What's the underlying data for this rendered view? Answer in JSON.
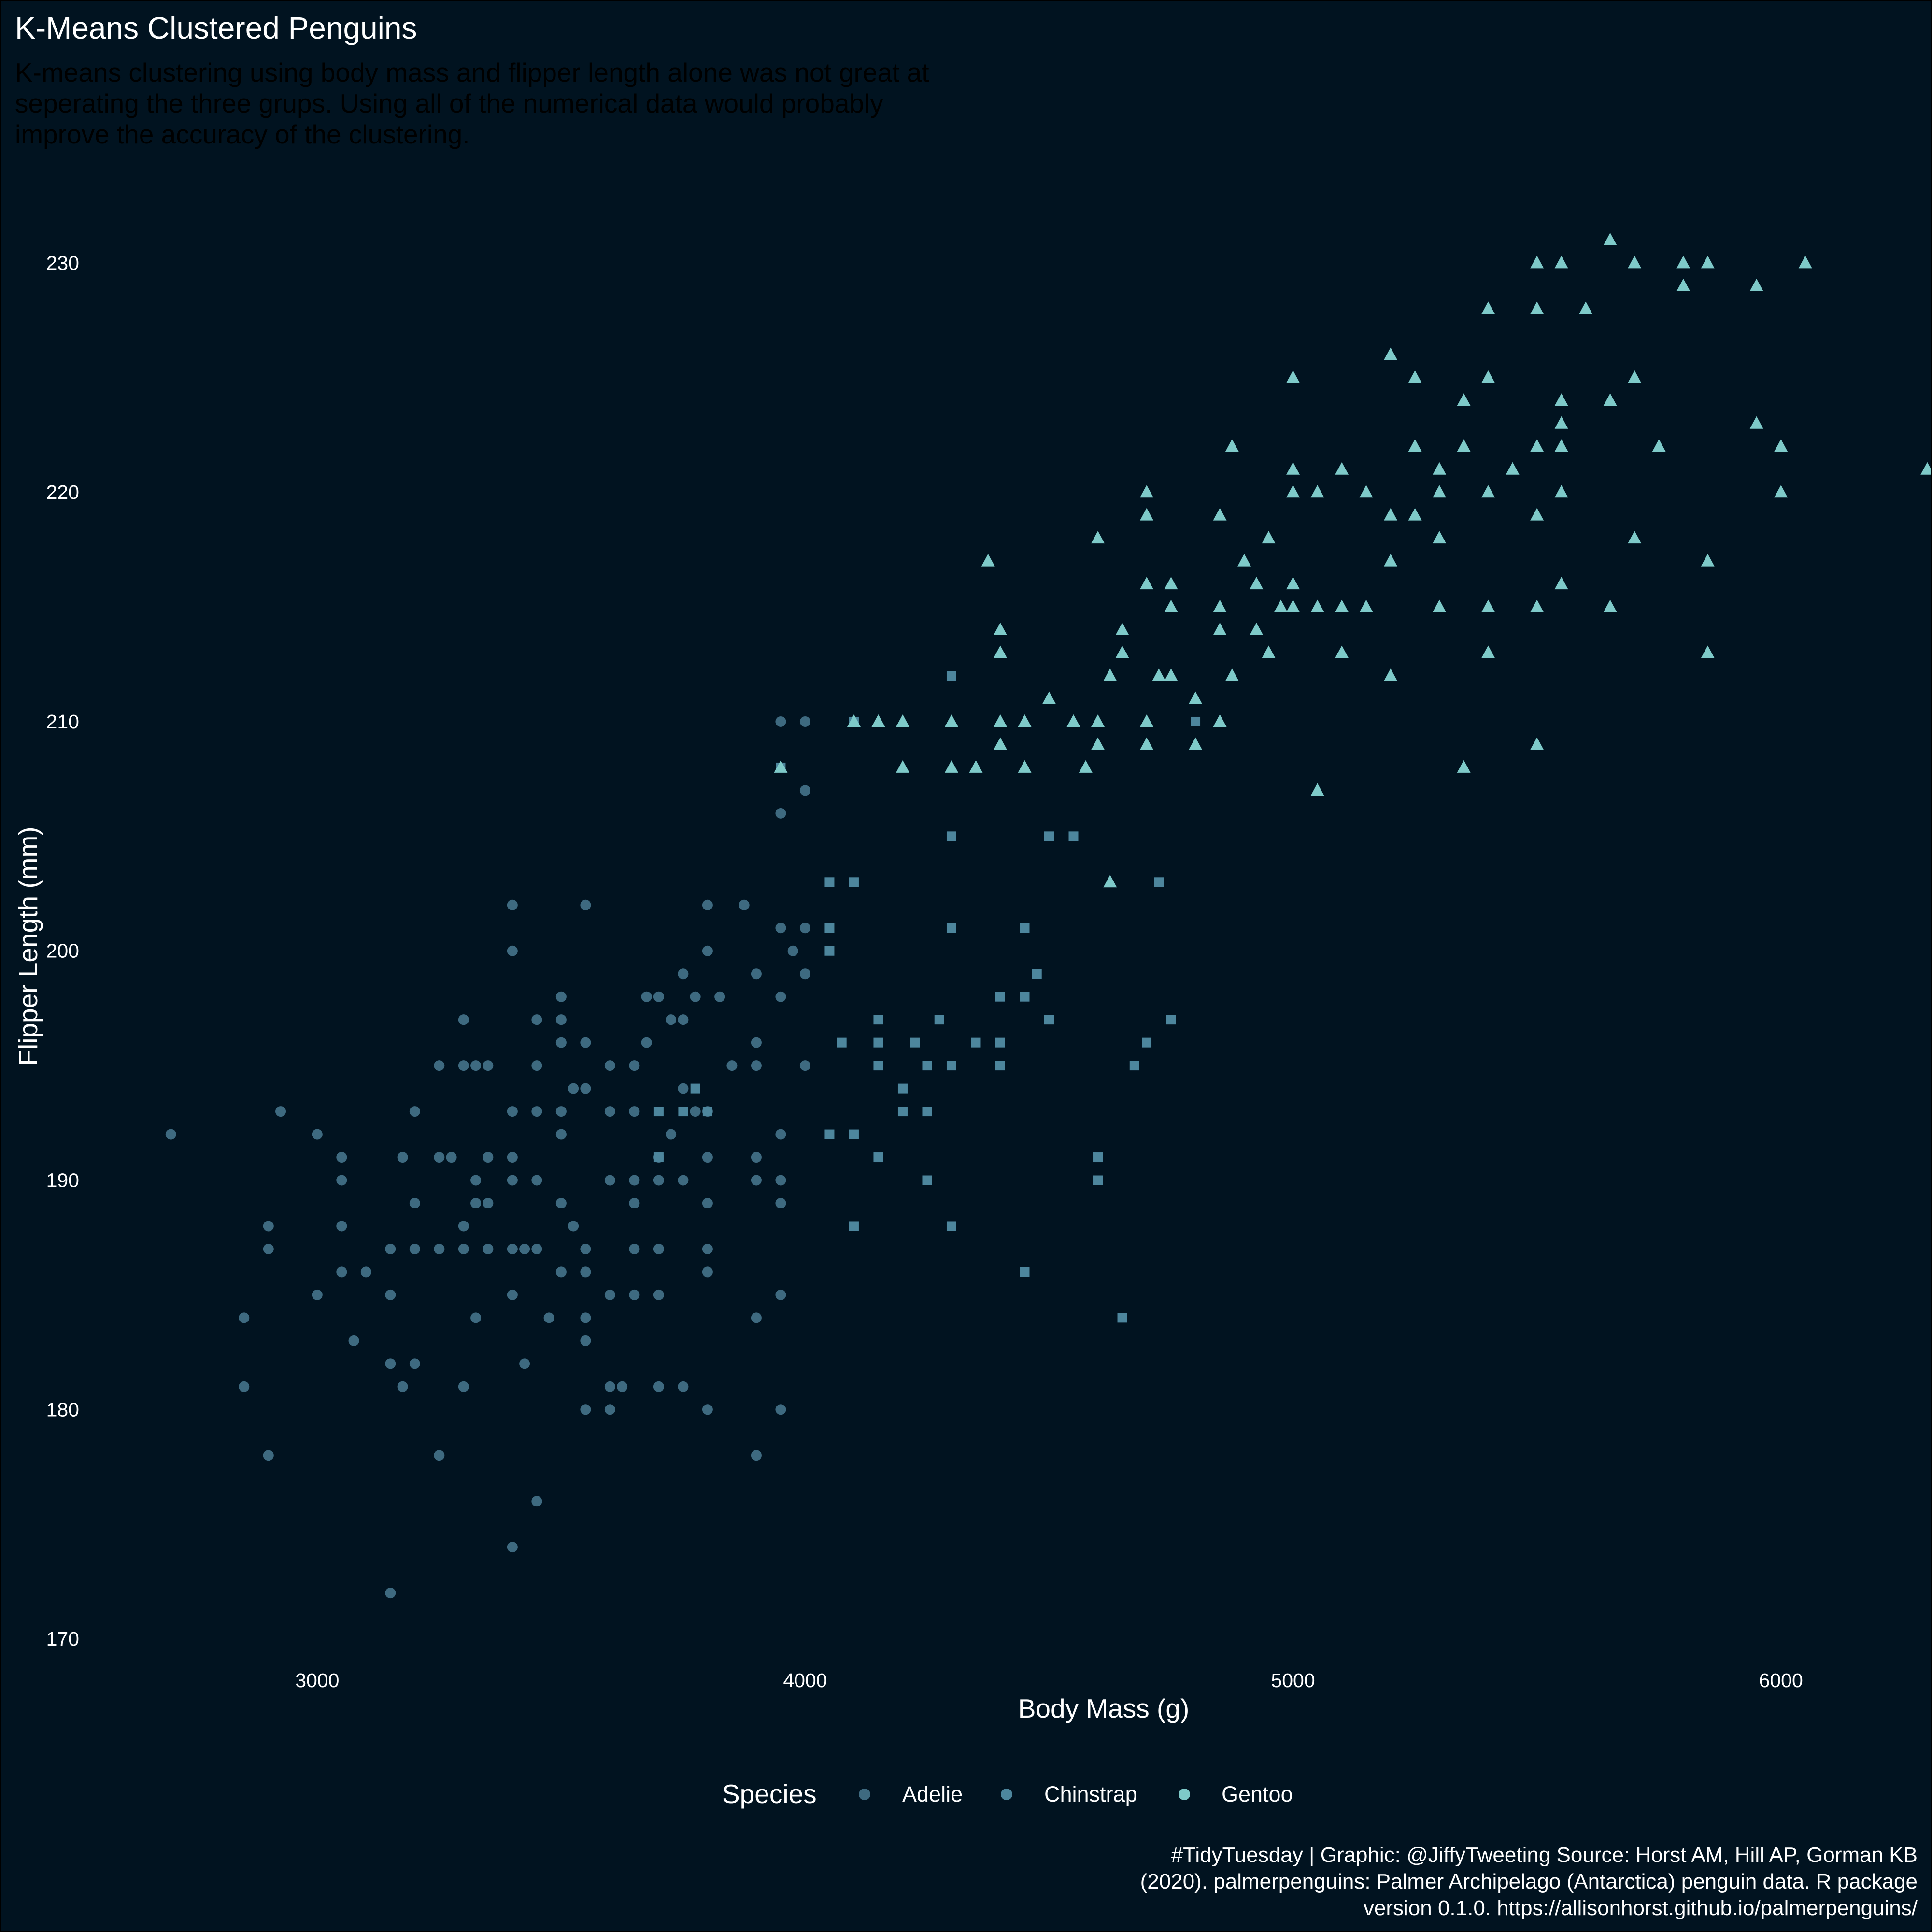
{
  "chart_data": {
    "type": "scatter",
    "title": "K-Means Clustered Penguins",
    "subtitle": [
      "K-means clustering using body mass and flipper length alone was not great at",
      "seperating the three grups. Using all of the numerical data would probably",
      "improve the accuracy of the clustering."
    ],
    "xlabel": "Body Mass (g)",
    "ylabel": "Flipper Length (mm)",
    "xlim": [
      2625,
      6375
    ],
    "ylim": [
      168,
      233
    ],
    "xticks": [
      3000,
      4000,
      5000,
      6000
    ],
    "yticks": [
      170,
      180,
      190,
      200,
      210,
      220,
      230
    ],
    "grid": false,
    "legend": {
      "title": "Species",
      "position": "bottom",
      "entries": [
        "Adelie",
        "Chinstrap",
        "Gentoo"
      ]
    },
    "cluster_colors": [
      "#3e6a80",
      "#4d869d",
      "#7ecac9"
    ],
    "cluster_shapes": [
      "circle",
      "square",
      "triangle"
    ],
    "caption": [
      "#TidyTuesday | Graphic: @JiffyTweeting Source: Horst AM, Hill AP, Gorman KB",
      "(2020). palmerpenguins: Palmer Archipelago (Antarctica) penguin data. R package",
      "version 0.1.0. https://allisonhorst.github.io/palmerpenguins/"
    ],
    "series": [
      {
        "name": "Adelie",
        "points": [
          [
            2700,
            192
          ],
          [
            2850,
            184
          ],
          [
            2850,
            181
          ],
          [
            2900,
            188
          ],
          [
            2900,
            187
          ],
          [
            2900,
            178
          ],
          [
            2925,
            193
          ],
          [
            3000,
            185
          ],
          [
            3000,
            192
          ],
          [
            3050,
            191
          ],
          [
            3050,
            190
          ],
          [
            3050,
            188
          ],
          [
            3050,
            186
          ],
          [
            3075,
            183
          ],
          [
            3100,
            186
          ],
          [
            3150,
            187
          ],
          [
            3150,
            185
          ],
          [
            3150,
            182
          ],
          [
            3150,
            172
          ],
          [
            3175,
            191
          ],
          [
            3175,
            181
          ],
          [
            3200,
            193
          ],
          [
            3200,
            189
          ],
          [
            3200,
            187
          ],
          [
            3200,
            182
          ],
          [
            3250,
            195
          ],
          [
            3250,
            191
          ],
          [
            3250,
            187
          ],
          [
            3250,
            178
          ],
          [
            3275,
            191
          ],
          [
            3300,
            197
          ],
          [
            3300,
            195
          ],
          [
            3300,
            188
          ],
          [
            3300,
            187
          ],
          [
            3300,
            181
          ],
          [
            3325,
            190
          ],
          [
            3325,
            189
          ],
          [
            3325,
            184
          ],
          [
            3325,
            195
          ],
          [
            3350,
            195
          ],
          [
            3350,
            191
          ],
          [
            3350,
            189
          ],
          [
            3350,
            187
          ],
          [
            3400,
            202
          ],
          [
            3400,
            200
          ],
          [
            3400,
            193
          ],
          [
            3400,
            191
          ],
          [
            3400,
            190
          ],
          [
            3400,
            187
          ],
          [
            3400,
            185
          ],
          [
            3400,
            174
          ],
          [
            3425,
            187
          ],
          [
            3425,
            182
          ],
          [
            3450,
            197
          ],
          [
            3450,
            195
          ],
          [
            3450,
            193
          ],
          [
            3450,
            190
          ],
          [
            3450,
            187
          ],
          [
            3450,
            176
          ],
          [
            3475,
            184
          ],
          [
            3500,
            198
          ],
          [
            3500,
            197
          ],
          [
            3500,
            196
          ],
          [
            3500,
            193
          ],
          [
            3500,
            192
          ],
          [
            3500,
            189
          ],
          [
            3500,
            186
          ],
          [
            3525,
            188
          ],
          [
            3525,
            194
          ],
          [
            3550,
            202
          ],
          [
            3550,
            196
          ],
          [
            3550,
            194
          ],
          [
            3550,
            187
          ],
          [
            3550,
            186
          ],
          [
            3550,
            184
          ],
          [
            3550,
            183
          ],
          [
            3550,
            180
          ],
          [
            3600,
            195
          ],
          [
            3600,
            193
          ],
          [
            3600,
            190
          ],
          [
            3600,
            185
          ],
          [
            3600,
            181
          ],
          [
            3600,
            180
          ],
          [
            3625,
            181
          ],
          [
            3650,
            195
          ],
          [
            3650,
            193
          ],
          [
            3650,
            190
          ],
          [
            3650,
            189
          ],
          [
            3650,
            187
          ],
          [
            3650,
            185
          ],
          [
            3675,
            196
          ],
          [
            3675,
            198
          ],
          [
            3700,
            198
          ],
          [
            3700,
            191
          ],
          [
            3700,
            190
          ],
          [
            3700,
            187
          ],
          [
            3700,
            185
          ],
          [
            3700,
            181
          ],
          [
            3725,
            197
          ],
          [
            3725,
            192
          ],
          [
            3750,
            199
          ],
          [
            3750,
            197
          ],
          [
            3750,
            194
          ],
          [
            3750,
            190
          ],
          [
            3750,
            181
          ],
          [
            3775,
            198
          ],
          [
            3775,
            193
          ],
          [
            3800,
            202
          ],
          [
            3800,
            200
          ],
          [
            3800,
            193
          ],
          [
            3800,
            191
          ],
          [
            3800,
            189
          ],
          [
            3800,
            187
          ],
          [
            3800,
            186
          ],
          [
            3800,
            180
          ],
          [
            3825,
            198
          ],
          [
            3850,
            195
          ],
          [
            3875,
            202
          ],
          [
            3900,
            199
          ],
          [
            3900,
            196
          ],
          [
            3900,
            195
          ],
          [
            3900,
            191
          ],
          [
            3900,
            190
          ],
          [
            3900,
            184
          ],
          [
            3900,
            178
          ],
          [
            3950,
            210
          ],
          [
            3950,
            206
          ],
          [
            3950,
            201
          ],
          [
            3950,
            198
          ],
          [
            3950,
            192
          ],
          [
            3950,
            190
          ],
          [
            3950,
            189
          ],
          [
            3950,
            185
          ],
          [
            3950,
            180
          ],
          [
            3975,
            200
          ],
          [
            4000,
            210
          ],
          [
            4000,
            201
          ],
          [
            4000,
            199
          ],
          [
            4000,
            195
          ],
          [
            4000,
            207
          ]
        ]
      },
      {
        "name": "Chinstrap",
        "points": [
          [
            3700,
            193
          ],
          [
            3700,
            191
          ],
          [
            3750,
            193
          ],
          [
            3775,
            194
          ],
          [
            3800,
            193
          ],
          [
            3950,
            208
          ],
          [
            4050,
            201
          ],
          [
            4050,
            200
          ],
          [
            4050,
            203
          ],
          [
            4050,
            192
          ],
          [
            4075,
            196
          ],
          [
            4100,
            192
          ],
          [
            4100,
            188
          ],
          [
            4100,
            203
          ],
          [
            4100,
            210
          ],
          [
            4150,
            197
          ],
          [
            4150,
            196
          ],
          [
            4150,
            195
          ],
          [
            4150,
            191
          ],
          [
            4200,
            194
          ],
          [
            4200,
            193
          ],
          [
            4225,
            196
          ],
          [
            4250,
            195
          ],
          [
            4250,
            193
          ],
          [
            4250,
            190
          ],
          [
            4275,
            197
          ],
          [
            4300,
            212
          ],
          [
            4300,
            205
          ],
          [
            4300,
            201
          ],
          [
            4300,
            195
          ],
          [
            4300,
            188
          ],
          [
            4350,
            196
          ],
          [
            4400,
            198
          ],
          [
            4400,
            196
          ],
          [
            4400,
            195
          ],
          [
            4450,
            201
          ],
          [
            4450,
            198
          ],
          [
            4450,
            186
          ],
          [
            4475,
            199
          ],
          [
            4500,
            205
          ],
          [
            4500,
            197
          ],
          [
            4550,
            205
          ],
          [
            4600,
            191
          ],
          [
            4600,
            190
          ],
          [
            4650,
            184
          ],
          [
            4675,
            195
          ],
          [
            4700,
            196
          ],
          [
            4725,
            203
          ],
          [
            4750,
            197
          ],
          [
            4800,
            210
          ]
        ]
      },
      {
        "name": "Gentoo",
        "points": [
          [
            3950,
            208
          ],
          [
            4100,
            210
          ],
          [
            4150,
            210
          ],
          [
            4200,
            210
          ],
          [
            4200,
            208
          ],
          [
            4300,
            210
          ],
          [
            4300,
            208
          ],
          [
            4350,
            208
          ],
          [
            4375,
            217
          ],
          [
            4400,
            214
          ],
          [
            4400,
            213
          ],
          [
            4400,
            210
          ],
          [
            4400,
            209
          ],
          [
            4450,
            210
          ],
          [
            4450,
            208
          ],
          [
            4500,
            211
          ],
          [
            4550,
            210
          ],
          [
            4575,
            208
          ],
          [
            4600,
            218
          ],
          [
            4600,
            210
          ],
          [
            4600,
            209
          ],
          [
            4625,
            212
          ],
          [
            4625,
            203
          ],
          [
            4650,
            214
          ],
          [
            4650,
            213
          ],
          [
            4700,
            220
          ],
          [
            4700,
            219
          ],
          [
            4700,
            216
          ],
          [
            4700,
            210
          ],
          [
            4700,
            209
          ],
          [
            4725,
            212
          ],
          [
            4750,
            216
          ],
          [
            4750,
            215
          ],
          [
            4750,
            212
          ],
          [
            4800,
            211
          ],
          [
            4800,
            209
          ],
          [
            4850,
            219
          ],
          [
            4850,
            215
          ],
          [
            4850,
            214
          ],
          [
            4850,
            210
          ],
          [
            4875,
            222
          ],
          [
            4875,
            212
          ],
          [
            4900,
            217
          ],
          [
            4925,
            216
          ],
          [
            4925,
            214
          ],
          [
            4950,
            218
          ],
          [
            4950,
            213
          ],
          [
            4975,
            215
          ],
          [
            5000,
            225
          ],
          [
            5000,
            221
          ],
          [
            5000,
            220
          ],
          [
            5000,
            216
          ],
          [
            5000,
            215
          ],
          [
            5050,
            220
          ],
          [
            5050,
            215
          ],
          [
            5050,
            207
          ],
          [
            5100,
            221
          ],
          [
            5100,
            215
          ],
          [
            5100,
            213
          ],
          [
            5150,
            220
          ],
          [
            5150,
            215
          ],
          [
            5200,
            226
          ],
          [
            5200,
            219
          ],
          [
            5200,
            217
          ],
          [
            5200,
            212
          ],
          [
            5250,
            225
          ],
          [
            5250,
            222
          ],
          [
            5250,
            219
          ],
          [
            5300,
            221
          ],
          [
            5300,
            220
          ],
          [
            5300,
            218
          ],
          [
            5300,
            215
          ],
          [
            5350,
            224
          ],
          [
            5350,
            222
          ],
          [
            5350,
            208
          ],
          [
            5400,
            228
          ],
          [
            5400,
            225
          ],
          [
            5400,
            220
          ],
          [
            5400,
            215
          ],
          [
            5400,
            213
          ],
          [
            5450,
            221
          ],
          [
            5500,
            230
          ],
          [
            5500,
            228
          ],
          [
            5500,
            222
          ],
          [
            5500,
            219
          ],
          [
            5500,
            215
          ],
          [
            5500,
            209
          ],
          [
            5550,
            230
          ],
          [
            5550,
            224
          ],
          [
            5550,
            223
          ],
          [
            5550,
            222
          ],
          [
            5550,
            220
          ],
          [
            5550,
            216
          ],
          [
            5600,
            228
          ],
          [
            5650,
            231
          ],
          [
            5650,
            224
          ],
          [
            5650,
            215
          ],
          [
            5700,
            230
          ],
          [
            5700,
            225
          ],
          [
            5700,
            218
          ],
          [
            5750,
            222
          ],
          [
            5800,
            230
          ],
          [
            5800,
            229
          ],
          [
            5850,
            230
          ],
          [
            5850,
            217
          ],
          [
            5850,
            213
          ],
          [
            5950,
            229
          ],
          [
            5950,
            223
          ],
          [
            6000,
            222
          ],
          [
            6000,
            220
          ],
          [
            6050,
            230
          ],
          [
            6300,
            221
          ]
        ]
      }
    ]
  }
}
